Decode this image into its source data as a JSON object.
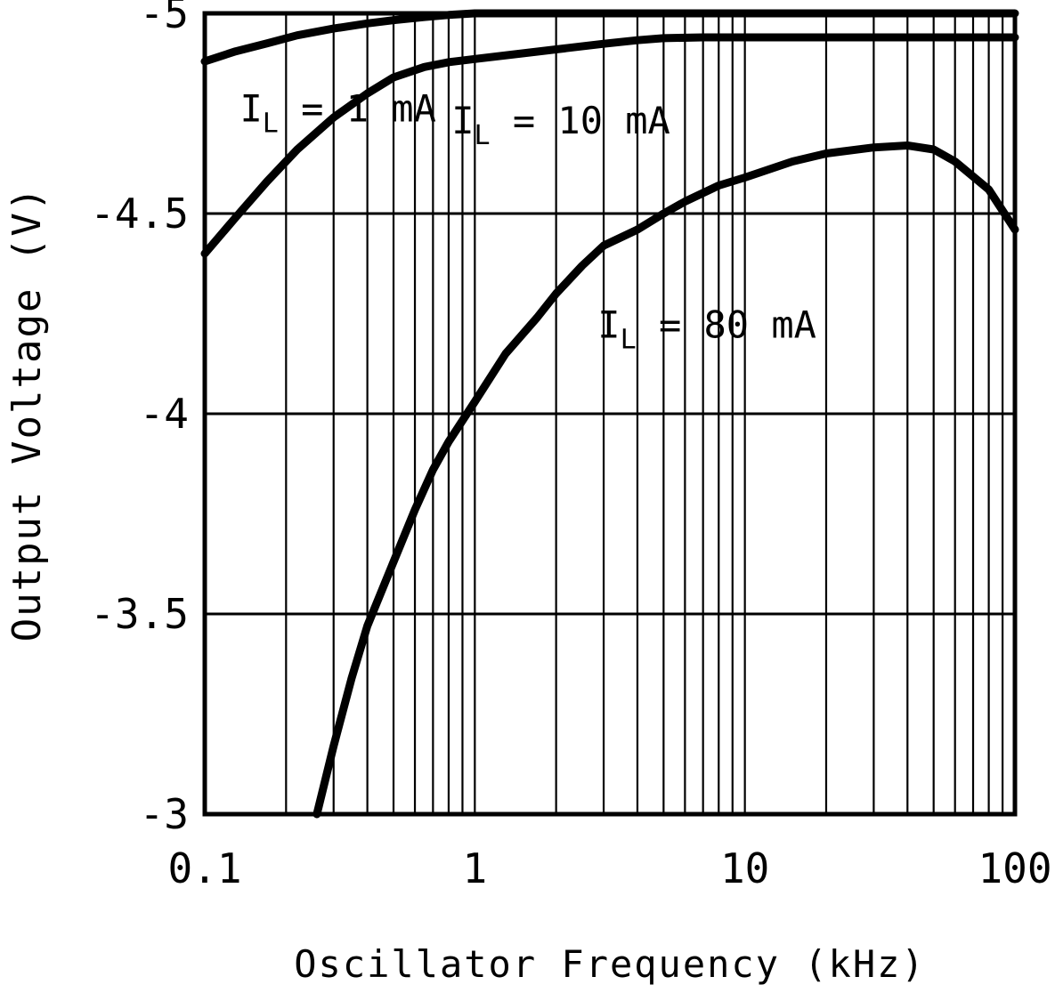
{
  "page": {
    "background": "#ffffff",
    "ink": "#000000"
  },
  "chart_data": {
    "type": "line",
    "title": "",
    "xlabel": "Oscillator Frequency (kHz)",
    "ylabel": "Output Voltage (V)",
    "x_scale": "log",
    "xlim": [
      0.1,
      100
    ],
    "ylim": [
      -5,
      -3
    ],
    "grid": "on",
    "legend": "inline-labels",
    "x_ticks": {
      "values": [
        0.1,
        1,
        10,
        100
      ],
      "labels": [
        "0.1",
        "1",
        "10",
        "100"
      ]
    },
    "y_ticks": {
      "values": [
        -5,
        -4.5,
        -4,
        -3.5,
        -3
      ],
      "labels": [
        "-5",
        "-4.5",
        "-4",
        "-3.5",
        "-3"
      ]
    },
    "series": [
      {
        "id": "il-1ma",
        "name": "IL = 1 mA",
        "label": {
          "base": "I",
          "sub": "L",
          "rest": " = 1 mA"
        },
        "label_pos": [
          0.135,
          -4.73
        ],
        "points": [
          [
            0.1,
            -4.88
          ],
          [
            0.13,
            -4.905
          ],
          [
            0.17,
            -4.925
          ],
          [
            0.22,
            -4.945
          ],
          [
            0.3,
            -4.962
          ],
          [
            0.4,
            -4.975
          ],
          [
            0.5,
            -4.983
          ],
          [
            0.65,
            -4.991
          ],
          [
            0.8,
            -4.996
          ],
          [
            1,
            -5.0
          ],
          [
            2,
            -5.0
          ],
          [
            5,
            -5.0
          ],
          [
            10,
            -5.0
          ],
          [
            100,
            -5.0
          ]
        ]
      },
      {
        "id": "il-10ma",
        "name": "IL = 10 mA",
        "label": {
          "base": "I",
          "sub": "L",
          "rest": " = 10 mA"
        },
        "label_pos": [
          0.82,
          -4.7
        ],
        "points": [
          [
            0.1,
            -4.4
          ],
          [
            0.13,
            -4.49
          ],
          [
            0.17,
            -4.58
          ],
          [
            0.22,
            -4.66
          ],
          [
            0.3,
            -4.74
          ],
          [
            0.4,
            -4.8
          ],
          [
            0.5,
            -4.84
          ],
          [
            0.65,
            -4.866
          ],
          [
            0.8,
            -4.878
          ],
          [
            1,
            -4.886
          ],
          [
            1.5,
            -4.9
          ],
          [
            2,
            -4.91
          ],
          [
            3,
            -4.924
          ],
          [
            4,
            -4.933
          ],
          [
            5,
            -4.938
          ],
          [
            7,
            -4.94
          ],
          [
            10,
            -4.94
          ],
          [
            20,
            -4.94
          ],
          [
            50,
            -4.94
          ],
          [
            100,
            -4.94
          ]
        ]
      },
      {
        "id": "il-80ma",
        "name": "IL = 80 mA",
        "label": {
          "base": "I",
          "sub": "L",
          "rest": " = 80 mA"
        },
        "label_pos": [
          2.85,
          -4.19
        ],
        "points": [
          [
            0.26,
            -3.0
          ],
          [
            0.3,
            -3.17
          ],
          [
            0.35,
            -3.34
          ],
          [
            0.4,
            -3.47
          ],
          [
            0.5,
            -3.63
          ],
          [
            0.6,
            -3.76
          ],
          [
            0.7,
            -3.86
          ],
          [
            0.8,
            -3.93
          ],
          [
            1,
            -4.03
          ],
          [
            1.3,
            -4.15
          ],
          [
            1.7,
            -4.24
          ],
          [
            2,
            -4.3
          ],
          [
            2.5,
            -4.37
          ],
          [
            3,
            -4.42
          ],
          [
            4,
            -4.46
          ],
          [
            5,
            -4.5
          ],
          [
            6,
            -4.53
          ],
          [
            8,
            -4.57
          ],
          [
            10,
            -4.59
          ],
          [
            15,
            -4.63
          ],
          [
            20,
            -4.65
          ],
          [
            30,
            -4.665
          ],
          [
            40,
            -4.67
          ],
          [
            50,
            -4.66
          ],
          [
            60,
            -4.63
          ],
          [
            80,
            -4.56
          ],
          [
            100,
            -4.46
          ]
        ]
      }
    ]
  }
}
